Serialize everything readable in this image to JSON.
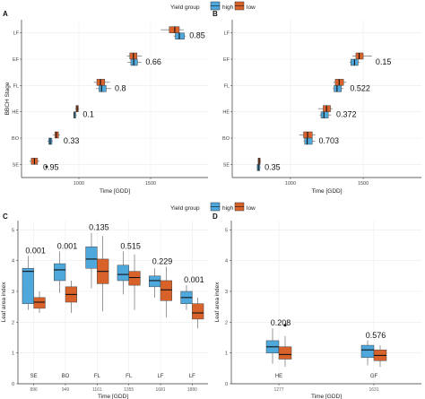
{
  "colors": {
    "high": "#4ea8dc",
    "low": "#d9622b"
  },
  "legend": {
    "title": "Yield group",
    "high": "high",
    "low": "low"
  },
  "chart_data": [
    {
      "panel": "A",
      "type": "boxplot-horizontal",
      "xlabel": "Time [GDD]",
      "ylabel": "BBCH Stage",
      "xlim": [
        600,
        1900
      ],
      "xticks": [
        1000,
        1500
      ],
      "categories": [
        "SE",
        "BO",
        "HE",
        "FL",
        "EF",
        "LF"
      ],
      "series": [
        {
          "name": "high",
          "boxes": [
            null,
            {
              "min": 780,
              "q1": 790,
              "median": 800,
              "q3": 812,
              "max": 818
            },
            {
              "min": 962,
              "q1": 965,
              "median": 968,
              "q3": 978,
              "max": 985
            },
            {
              "min": 1120,
              "q1": 1140,
              "median": 1158,
              "q3": 1190,
              "max": 1225
            },
            {
              "min": 1340,
              "q1": 1362,
              "median": 1382,
              "q3": 1408,
              "max": 1435
            },
            {
              "min": 1660,
              "q1": 1672,
              "median": 1700,
              "q3": 1735,
              "max": 1745
            }
          ]
        },
        {
          "name": "low",
          "boxes": [
            {
              "min": 655,
              "q1": 668,
              "median": 690,
              "q3": 712,
              "max": 725
            },
            {
              "min": 820,
              "q1": 832,
              "median": 843,
              "q3": 858,
              "max": 868
            },
            {
              "min": 975,
              "q1": 980,
              "median": 988,
              "q3": 996,
              "max": 1002
            },
            {
              "min": 1105,
              "q1": 1125,
              "median": 1150,
              "q3": 1180,
              "max": 1215
            },
            {
              "min": 1335,
              "q1": 1355,
              "median": 1380,
              "q3": 1405,
              "max": 1440
            },
            {
              "min": 1570,
              "q1": 1630,
              "median": 1668,
              "q3": 1700,
              "max": 1730
            }
          ]
        }
      ],
      "pvalues": [
        "0.95",
        "0.33",
        "0.1",
        "0.8",
        "0.66",
        "0.85"
      ]
    },
    {
      "panel": "B",
      "type": "boxplot-horizontal",
      "xlabel": "Time [GDD]",
      "ylabel": "",
      "xlim": [
        600,
        1900
      ],
      "xticks": [
        1000,
        1500
      ],
      "categories": [
        "SE",
        "BO",
        "HE",
        "FL",
        "EF",
        "LF"
      ],
      "series": [
        {
          "name": "high",
          "boxes": [
            {
              "min": 770,
              "q1": 772,
              "median": 780,
              "q3": 790,
              "max": 795
            },
            {
              "min": 1090,
              "q1": 1098,
              "median": 1115,
              "q3": 1150,
              "max": 1170
            },
            {
              "min": 1200,
              "q1": 1210,
              "median": 1230,
              "q3": 1260,
              "max": 1280
            },
            {
              "min": 1290,
              "q1": 1300,
              "median": 1320,
              "q3": 1350,
              "max": 1365
            },
            {
              "min": 1405,
              "q1": 1415,
              "median": 1440,
              "q3": 1465,
              "max": 1475
            },
            {
              "min": null,
              "q1": null,
              "median": null,
              "q3": null,
              "max": null
            }
          ]
        },
        {
          "name": "low",
          "boxes": [
            {
              "min": 775,
              "q1": 778,
              "median": 785,
              "q3": 792,
              "max": 798
            },
            {
              "min": 1060,
              "q1": 1090,
              "median": 1118,
              "q3": 1150,
              "max": 1170
            },
            {
              "min": 1190,
              "q1": 1225,
              "median": 1248,
              "q3": 1275,
              "max": 1290
            },
            {
              "min": 1295,
              "q1": 1308,
              "median": 1335,
              "q3": 1365,
              "max": 1385
            },
            {
              "min": 1425,
              "q1": 1450,
              "median": 1472,
              "q3": 1500,
              "max": 1560
            },
            {
              "min": null,
              "q1": null,
              "median": null,
              "q3": null,
              "max": null
            }
          ]
        }
      ],
      "pvalues": [
        "0.35",
        "0.703",
        "0.372",
        "0.522",
        "0.15",
        ""
      ]
    },
    {
      "panel": "C",
      "type": "boxplot-vertical",
      "xlabel": "Time [GDD]",
      "ylabel": "Leaf area index",
      "ylim": [
        0,
        5.3
      ],
      "yticks": [
        0,
        1,
        2,
        3,
        4,
        5
      ],
      "categories": [
        "SE",
        "BO",
        "FL",
        "FL",
        "LF",
        "LF"
      ],
      "times": [
        "896",
        "949",
        "1161",
        "1355",
        "1681",
        "1880"
      ],
      "series": [
        {
          "name": "high",
          "boxes": [
            {
              "min": 2.4,
              "q1": 2.6,
              "median": 3.65,
              "q3": 3.75,
              "max": 4.15
            },
            {
              "min": 2.95,
              "q1": 3.35,
              "median": 3.7,
              "q3": 3.9,
              "max": 4.3
            },
            {
              "min": 3.1,
              "q1": 3.75,
              "median": 4.05,
              "q3": 4.45,
              "max": 4.9
            },
            {
              "min": 2.9,
              "q1": 3.35,
              "median": 3.55,
              "q3": 3.85,
              "max": 4.3
            },
            {
              "min": 2.8,
              "q1": 3.15,
              "median": 3.35,
              "q3": 3.5,
              "max": 3.75
            },
            {
              "min": 2.4,
              "q1": 2.6,
              "median": 2.8,
              "q3": 3.0,
              "max": 3.2
            }
          ]
        },
        {
          "name": "low",
          "boxes": [
            {
              "min": 2.3,
              "q1": 2.45,
              "median": 2.65,
              "q3": 2.8,
              "max": 3.0
            },
            {
              "min": 2.3,
              "q1": 2.65,
              "median": 2.9,
              "q3": 3.15,
              "max": 3.35
            },
            {
              "min": 2.35,
              "q1": 3.25,
              "median": 3.65,
              "q3": 4.05,
              "max": 4.8
            },
            {
              "min": 2.4,
              "q1": 3.2,
              "median": 3.45,
              "q3": 3.65,
              "max": 4.2
            },
            {
              "min": 2.15,
              "q1": 2.7,
              "median": 3.05,
              "q3": 3.35,
              "max": 3.8
            },
            {
              "min": 1.8,
              "q1": 2.1,
              "median": 2.3,
              "q3": 2.6,
              "max": 2.8
            }
          ]
        }
      ],
      "pvalues": [
        "0.001",
        "0.001",
        "0.135",
        "0.515",
        "0.229",
        "0.001"
      ]
    },
    {
      "panel": "D",
      "type": "boxplot-vertical",
      "xlabel": "Time [GDD]",
      "ylabel": "Leaf area index",
      "ylim": [
        0,
        5.3
      ],
      "yticks": [
        0,
        1,
        2,
        3,
        4,
        5
      ],
      "categories": [
        "HE",
        "GF"
      ],
      "times": [
        "1277",
        "1631"
      ],
      "series": [
        {
          "name": "high",
          "boxes": [
            {
              "min": 0.65,
              "q1": 1.0,
              "median": 1.2,
              "q3": 1.4,
              "max": 1.8
            },
            {
              "min": 0.6,
              "q1": 0.85,
              "median": 1.1,
              "q3": 1.25,
              "max": 1.4
            }
          ]
        },
        {
          "name": "low",
          "boxes": [
            {
              "min": 0.55,
              "q1": 0.8,
              "median": 0.95,
              "q3": 1.2,
              "max": 1.55
            },
            {
              "min": 0.55,
              "q1": 0.75,
              "median": 0.92,
              "q3": 1.1,
              "max": 1.25
            }
          ]
        }
      ],
      "outliers": [
        {
          "series": "low",
          "category": "HE",
          "value": 1.9
        }
      ],
      "pvalues": [
        "0.208",
        "0.576"
      ]
    }
  ]
}
